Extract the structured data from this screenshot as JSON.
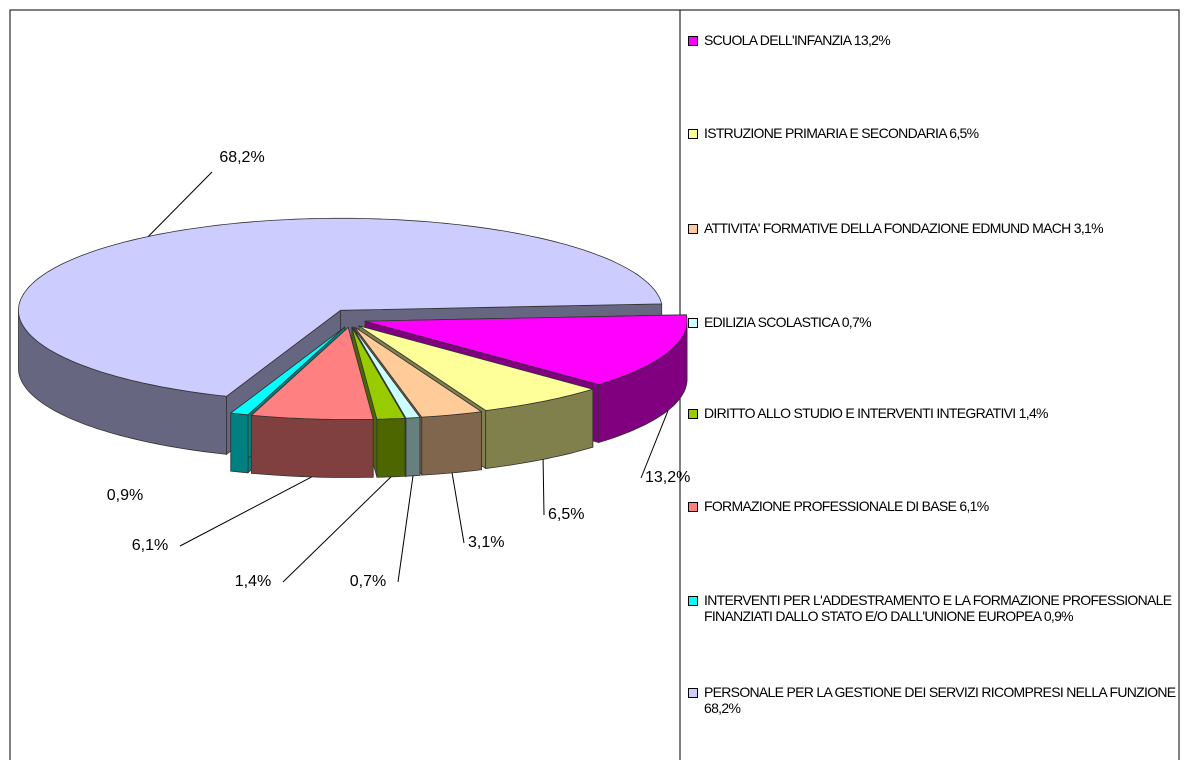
{
  "chart_data": {
    "type": "pie3d",
    "categories": [
      "SCUOLA DELL'INFANZIA 13,2%",
      "ISTRUZIONE PRIMARIA E SECONDARIA 6,5%",
      "ATTIVITA' FORMATIVE DELLA FONDAZIONE EDMUND MACH 3,1%",
      "EDILIZIA SCOLASTICA 0,7%",
      "DIRITTO ALLO STUDIO E INTERVENTI INTEGRATIVI 1,4%",
      "FORMAZIONE PROFESSIONALE DI BASE 6,1%",
      "INTERVENTI PER L'ADDESTRAMENTO E LA FORMAZIONE PROFESSIONALE FINANZIATI DALLO STATO E/O DALL'UNIONE EUROPEA 0,9%",
      "PERSONALE PER LA GESTIONE DEI SERVIZI RICOMPRESI NELLA FUNZIONE 68,2%"
    ],
    "values": [
      13.2,
      6.5,
      3.1,
      0.7,
      1.4,
      6.1,
      0.9,
      68.2
    ],
    "value_labels": [
      "13,2%",
      "6,5%",
      "3,1%",
      "0,7%",
      "1,4%",
      "6,1%",
      "0,9%",
      "68,2%"
    ],
    "colors": [
      "#ff00ff",
      "#ffff99",
      "#ffcc99",
      "#ccffff",
      "#99cc00",
      "#ff8080",
      "#00ffff",
      "#ccccff"
    ],
    "legend": "right"
  }
}
